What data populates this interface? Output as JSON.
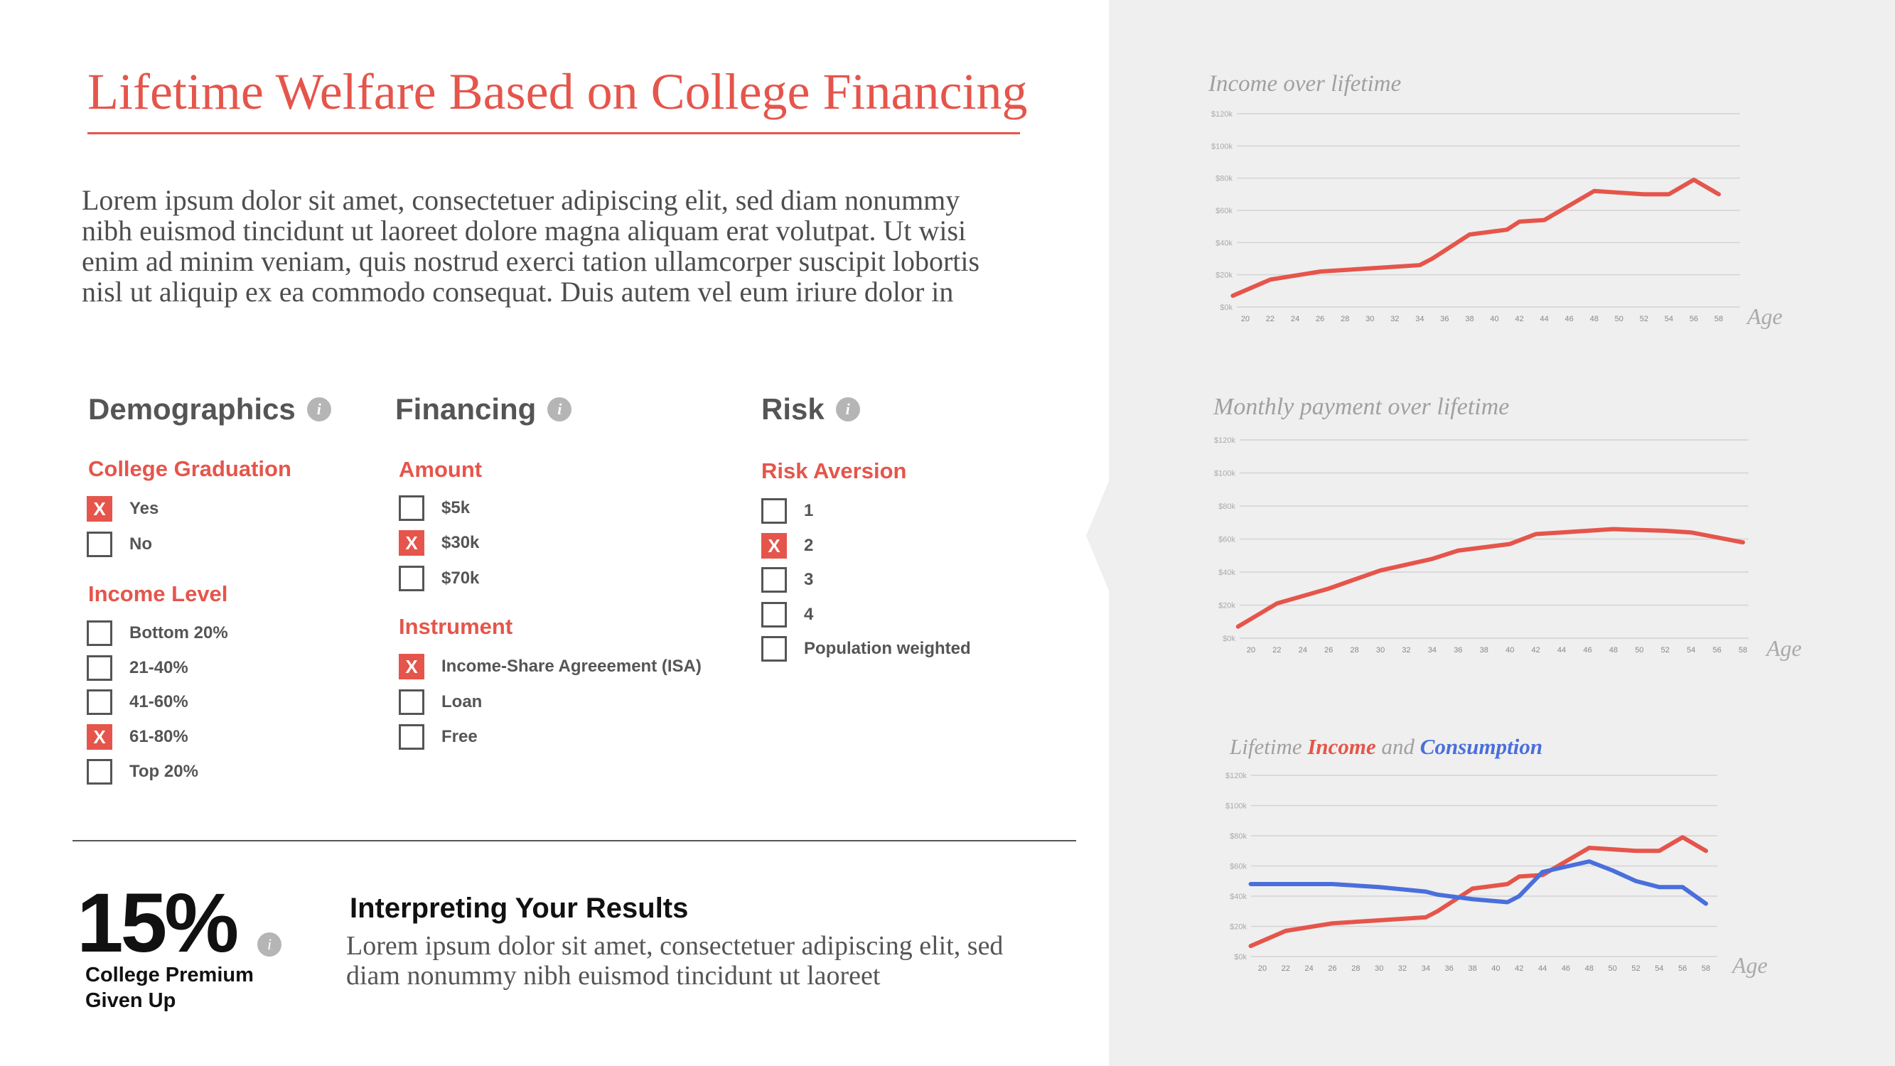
{
  "title": "Lifetime Welfare Based on College Financing",
  "intro": "Lorem ipsum dolor sit amet, consectetuer adipiscing elit, sed diam nonummy nibh euismod tincidunt ut laoreet dolore magna aliquam erat volutpat. Ut wisi enim ad minim veniam, quis nostrud exerci tation ullamcorper suscipit lobortis nisl ut aliquip ex ea commodo consequat. Duis autem vel eum iriure dolor in",
  "info_icon_glyph": "i",
  "demographics": {
    "heading": "Demographics",
    "college_graduation": {
      "label": "College Graduation",
      "options": [
        {
          "label": "Yes",
          "checked": true
        },
        {
          "label": "No",
          "checked": false
        }
      ]
    },
    "income_level": {
      "label": "Income Level",
      "options": [
        {
          "label": "Bottom 20%",
          "checked": false
        },
        {
          "label": "21-40%",
          "checked": false
        },
        {
          "label": "41-60%",
          "checked": false
        },
        {
          "label": "61-80%",
          "checked": true
        },
        {
          "label": "Top 20%",
          "checked": false
        }
      ]
    }
  },
  "financing": {
    "heading": "Financing",
    "amount": {
      "label": "Amount",
      "options": [
        {
          "label": "$5k",
          "checked": false
        },
        {
          "label": "$30k",
          "checked": true
        },
        {
          "label": "$70k",
          "checked": false
        }
      ]
    },
    "instrument": {
      "label": "Instrument",
      "options": [
        {
          "label": "Income-Share Agreeement (ISA)",
          "checked": true
        },
        {
          "label": "Loan",
          "checked": false
        },
        {
          "label": "Free",
          "checked": false
        }
      ]
    }
  },
  "risk": {
    "heading": "Risk",
    "risk_aversion": {
      "label": "Risk Aversion",
      "options": [
        {
          "label": "1",
          "checked": false
        },
        {
          "label": "2",
          "checked": true
        },
        {
          "label": "3",
          "checked": false
        },
        {
          "label": "4",
          "checked": false
        },
        {
          "label": "Population weighted",
          "checked": false
        }
      ]
    }
  },
  "check_mark": "X",
  "result": {
    "value": "15%",
    "label": "College Premium Given Up",
    "heading": "Interpreting Your Results",
    "text": "Lorem ipsum dolor sit amet, consectetuer adipiscing elit, sed diam nonummy nibh euismod tincidunt ut laoreet"
  },
  "colors": {
    "accent": "#e5554b",
    "income": "#e5554b",
    "consumption": "#4a6fdc",
    "panel": "#efefef"
  },
  "chart_data": [
    {
      "type": "line",
      "title": "Income over lifetime",
      "xlabel": "Age",
      "x": [
        19,
        22,
        26,
        30,
        34,
        35,
        38,
        41,
        42,
        44,
        48,
        50,
        52,
        54,
        56,
        58
      ],
      "xticks": [
        20,
        22,
        24,
        26,
        28,
        30,
        32,
        34,
        36,
        38,
        40,
        42,
        44,
        46,
        48,
        50,
        52,
        54,
        56,
        58
      ],
      "yticks": [
        "$0k",
        "$20k",
        "$40k",
        "$60k",
        "$80k",
        "$100k",
        "$120k"
      ],
      "ylim": [
        0,
        120
      ],
      "series": [
        {
          "color": "#e5554b",
          "values": [
            7,
            17,
            22,
            24,
            26,
            30,
            45,
            48,
            53,
            54,
            72,
            71,
            70,
            70,
            79,
            70
          ]
        }
      ]
    },
    {
      "type": "line",
      "title": "Monthly payment over lifetime",
      "xlabel": "Age",
      "x": [
        19,
        22,
        26,
        30,
        34,
        36,
        40,
        42,
        44,
        48,
        52,
        54,
        58
      ],
      "xticks": [
        20,
        22,
        24,
        26,
        28,
        30,
        32,
        34,
        36,
        38,
        40,
        42,
        44,
        46,
        48,
        50,
        52,
        54,
        56,
        58
      ],
      "yticks": [
        "$0k",
        "$20k",
        "$40k",
        "$60k",
        "$80k",
        "$100k",
        "$120k"
      ],
      "ylim": [
        0,
        120
      ],
      "series": [
        {
          "color": "#e5554b",
          "values": [
            7,
            21,
            30,
            41,
            48,
            53,
            57,
            63,
            64,
            66,
            65,
            64,
            58
          ]
        }
      ]
    },
    {
      "type": "line",
      "title_parts": [
        "Lifetime ",
        "Income",
        " and ",
        "Consumption"
      ],
      "xlabel": "Age",
      "xticks": [
        20,
        22,
        24,
        26,
        28,
        30,
        32,
        34,
        36,
        38,
        40,
        42,
        44,
        46,
        48,
        50,
        52,
        54,
        56,
        58
      ],
      "yticks": [
        "$0k",
        "$20k",
        "$40k",
        "$60k",
        "$80k",
        "$100k",
        "$120k"
      ],
      "ylim": [
        0,
        120
      ],
      "series": [
        {
          "name": "Income",
          "color": "#e5554b",
          "x": [
            19,
            22,
            26,
            30,
            34,
            35,
            38,
            41,
            42,
            44,
            48,
            50,
            52,
            54,
            56,
            58
          ],
          "values": [
            7,
            17,
            22,
            24,
            26,
            30,
            45,
            48,
            53,
            54,
            72,
            71,
            70,
            70,
            79,
            70
          ]
        },
        {
          "name": "Consumption",
          "color": "#4a6fdc",
          "x": [
            19,
            22,
            26,
            30,
            34,
            35,
            38,
            41,
            42,
            44,
            48,
            50,
            52,
            54,
            56,
            58
          ],
          "values": [
            48,
            48,
            48,
            46,
            43,
            41,
            38,
            36,
            40,
            56,
            63,
            57,
            50,
            46,
            46,
            35
          ]
        }
      ]
    }
  ]
}
